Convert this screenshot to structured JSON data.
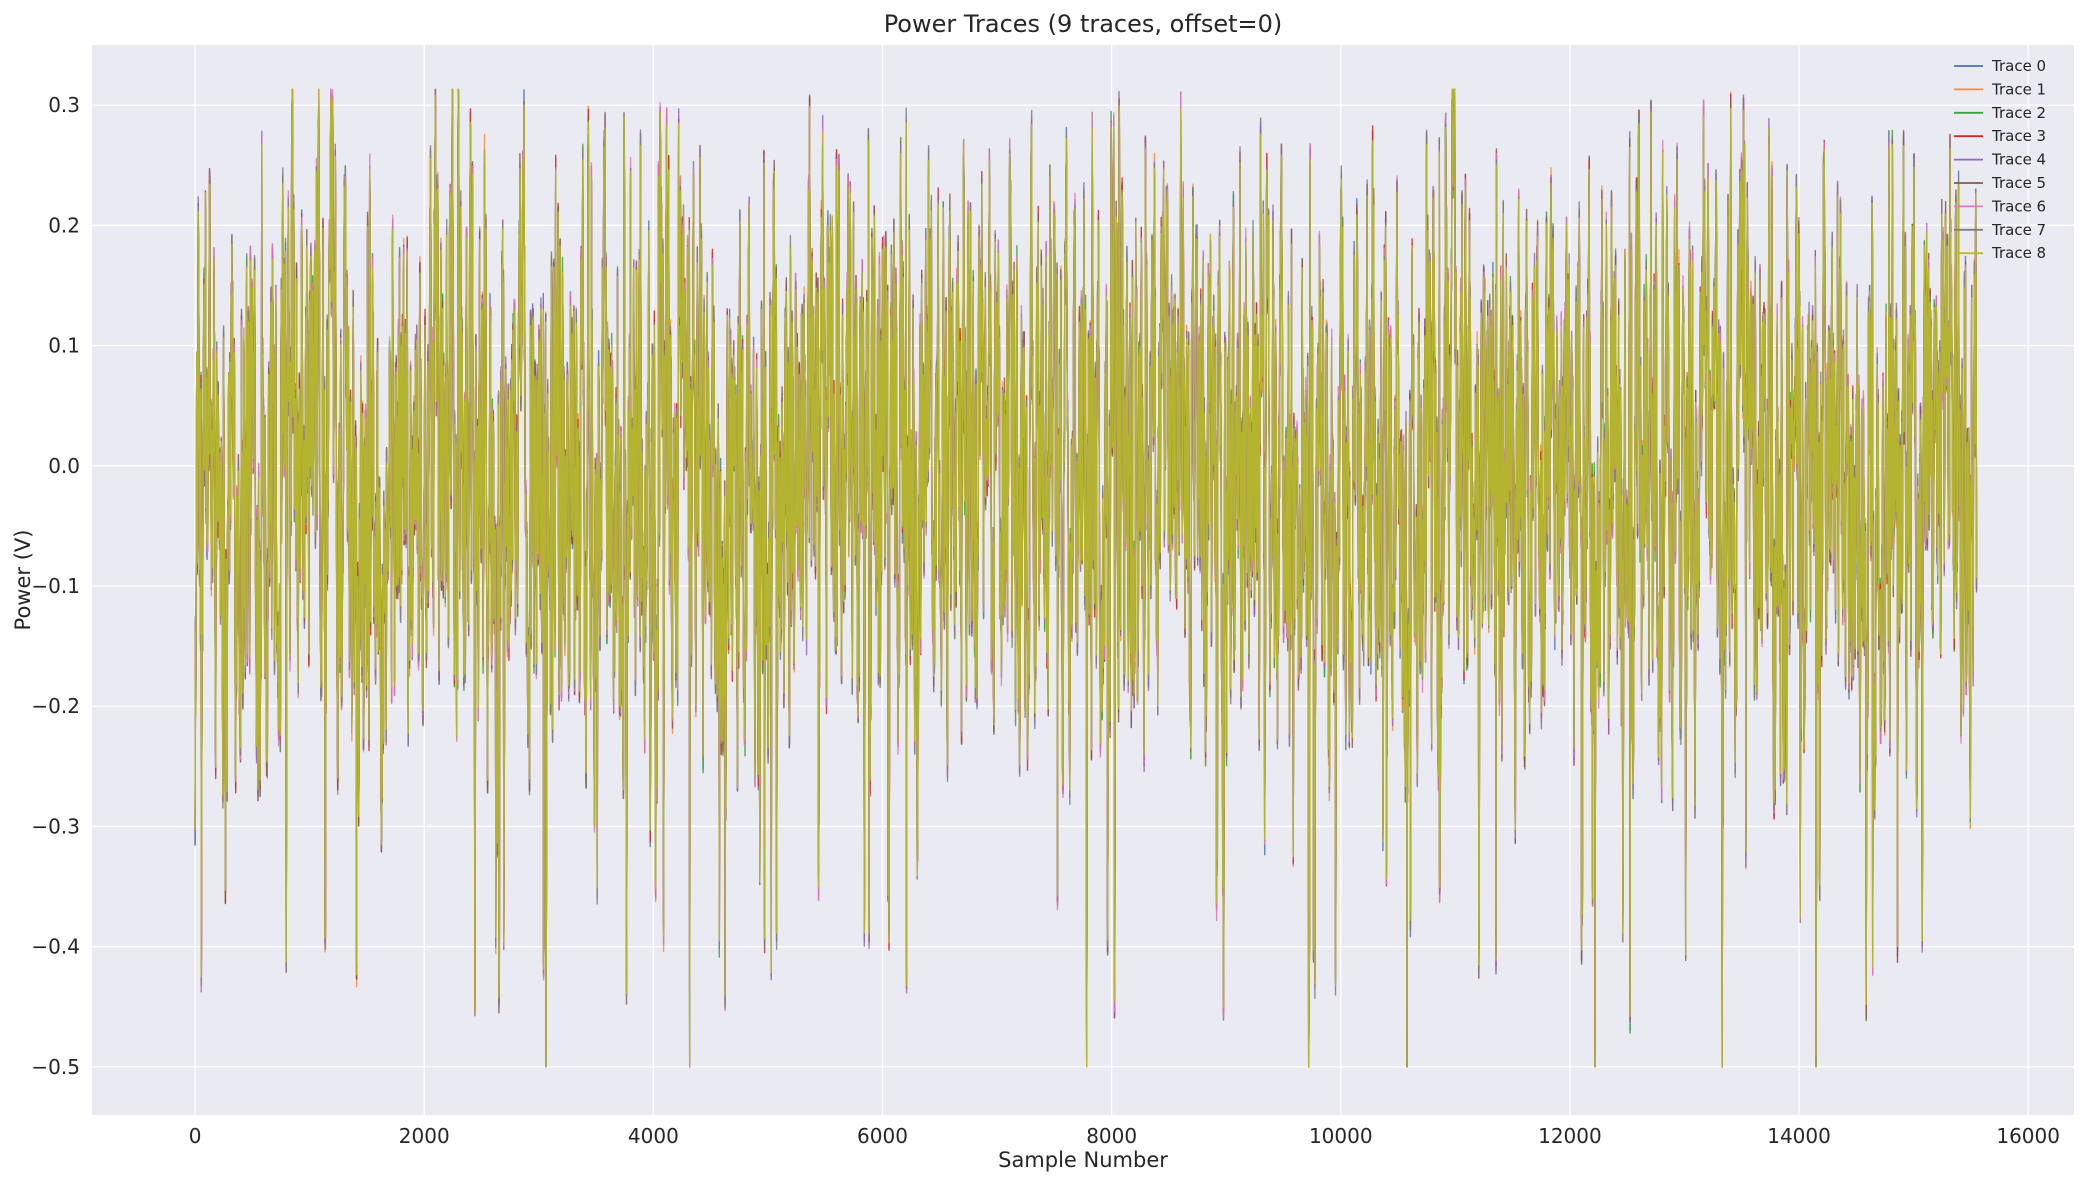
{
  "chart_data": {
    "type": "line",
    "title": "Power Traces (9 traces, offset=0)",
    "xlabel": "Sample Number",
    "ylabel": "Power (V)",
    "xlim": [
      -900,
      16400
    ],
    "ylim": [
      -0.54,
      0.35
    ],
    "xticks": [
      0,
      2000,
      4000,
      6000,
      8000,
      10000,
      12000,
      14000,
      16000
    ],
    "yticks": [
      0.3,
      0.2,
      0.1,
      0.0,
      -0.1,
      -0.2,
      -0.3,
      -0.4,
      -0.5
    ],
    "ytick_labels": [
      "0.3",
      "0.2",
      "0.1",
      "0.0",
      "−0.1",
      "−0.2",
      "−0.3",
      "−0.4",
      "−0.5"
    ],
    "grid": true,
    "legend_position": "top-right",
    "n_samples": 15550,
    "value_range": [
      -0.5,
      0.313
    ],
    "series": [
      {
        "name": "Trace 0",
        "color": "#4c72b0"
      },
      {
        "name": "Trace 1",
        "color": "#ff8c3a"
      },
      {
        "name": "Trace 2",
        "color": "#3aa43a"
      },
      {
        "name": "Trace 3",
        "color": "#d62728"
      },
      {
        "name": "Trace 4",
        "color": "#9467bd"
      },
      {
        "name": "Trace 5",
        "color": "#8c564b"
      },
      {
        "name": "Trace 6",
        "color": "#e377c2"
      },
      {
        "name": "Trace 7",
        "color": "#7f7f7f"
      },
      {
        "name": "Trace 8",
        "color": "#bcbd22"
      }
    ],
    "colors": {
      "plot_background": "#eaeaf2",
      "grid": "#ffffff",
      "text": "#262626"
    }
  }
}
